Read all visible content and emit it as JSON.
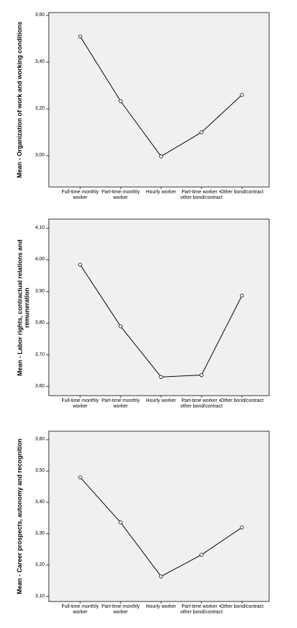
{
  "chart_data": [
    {
      "type": "line",
      "y_label": "Mean - Organization of work and working conditions",
      "categories": [
        "Full-time monthly worker",
        "Part-time monthly worker",
        "Hourly worker",
        "Part-time worker + other bond/contract",
        "Other bond/contract"
      ],
      "values": [
        3.51,
        3.233,
        2.997,
        3.1,
        3.26
      ],
      "color": "#000000",
      "ylim": [
        2.866,
        3.612
      ],
      "yticks": [
        {
          "value": 3.0,
          "label": "3,00"
        },
        {
          "value": 3.2,
          "label": "3,20"
        },
        {
          "value": 3.4,
          "label": "3,40"
        },
        {
          "value": 3.6,
          "label": "3,60"
        }
      ]
    },
    {
      "type": "line",
      "y_label": "Mean - Labor rights, contractual relations and remuneration",
      "categories": [
        "Full-time monthly worker",
        "Part-time monthly worker",
        "Hourly worker",
        "Part-time worker + other bond/contract",
        "Other bond/contract"
      ],
      "values": [
        3.985,
        3.79,
        3.63,
        3.636,
        3.887
      ],
      "color": "#000000",
      "ylim": [
        3.571,
        4.129
      ],
      "yticks": [
        {
          "value": 3.6,
          "label": "3,60"
        },
        {
          "value": 3.7,
          "label": "3,70"
        },
        {
          "value": 3.8,
          "label": "3,80"
        },
        {
          "value": 3.9,
          "label": "3,90"
        },
        {
          "value": 4.0,
          "label": "4,00"
        },
        {
          "value": 4.1,
          "label": "4,10"
        }
      ]
    },
    {
      "type": "line",
      "y_label": "Mean - Career prospects, autonomy and recognition",
      "categories": [
        "Full-time monthly worker",
        "Part-time monthly worker",
        "Hourly worker",
        "Part-time worker + other bond/contract",
        "Other bond/contract"
      ],
      "values": [
        3.48,
        3.336,
        3.164,
        3.233,
        3.32
      ],
      "color": "#000000",
      "ylim": [
        3.084,
        3.627
      ],
      "yticks": [
        {
          "value": 3.1,
          "label": "3,10"
        },
        {
          "value": 3.2,
          "label": "3,20"
        },
        {
          "value": 3.3,
          "label": "3,30"
        },
        {
          "value": 3.4,
          "label": "3,40"
        },
        {
          "value": 3.5,
          "label": "3,50"
        },
        {
          "value": 3.6,
          "label": "3,60"
        }
      ]
    }
  ]
}
